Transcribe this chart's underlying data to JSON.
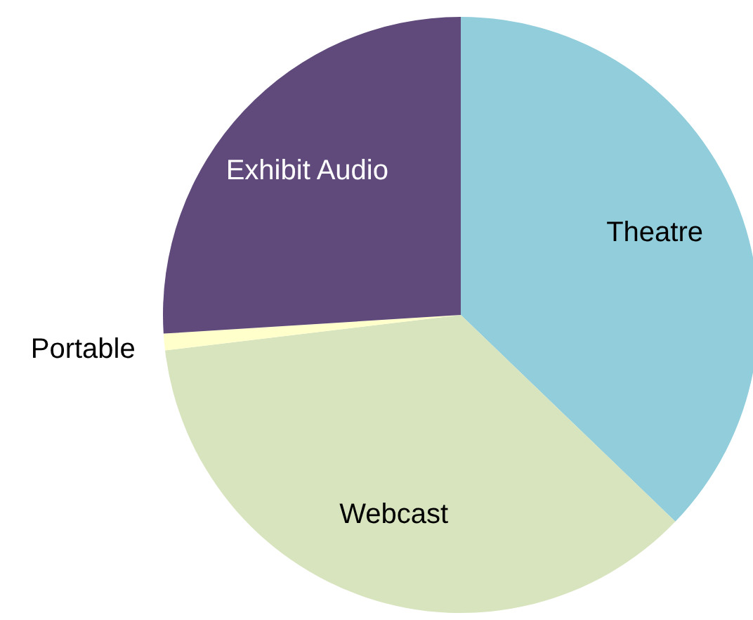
{
  "chart_data": {
    "type": "pie",
    "categories": [
      "Theatre",
      "Webcast",
      "Portable",
      "Exhibit Audio"
    ],
    "values": [
      37.2,
      35.9,
      0.9,
      26.0
    ],
    "colors": [
      "#92cddc",
      "#d7e4bd",
      "#ffffcc",
      "#604a7b"
    ]
  }
}
